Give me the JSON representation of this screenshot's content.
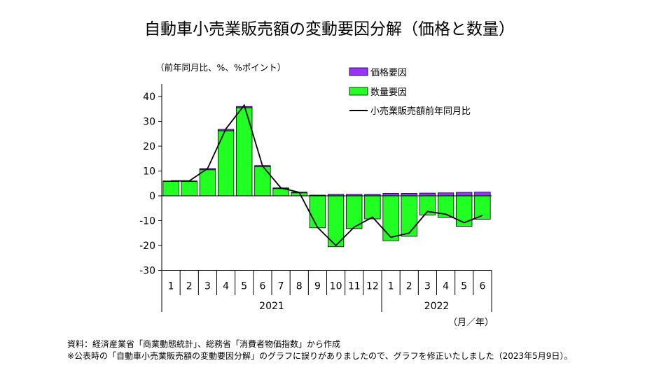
{
  "title": "自動車小売業販売額の変動要因分解（価格と数量）",
  "chart_data": {
    "type": "bar",
    "stacked": true,
    "ylabel": "（前年同月比、%、%ポイント）",
    "xunit": "（月／年）",
    "ylim": [
      -30,
      45
    ],
    "yticks": [
      40,
      30,
      20,
      10,
      0,
      -10,
      -20,
      -30
    ],
    "categories": [
      "1",
      "2",
      "3",
      "4",
      "5",
      "6",
      "7",
      "8",
      "9",
      "10",
      "11",
      "12",
      "1",
      "2",
      "3",
      "4",
      "5",
      "6"
    ],
    "year_groups": [
      {
        "label": "2021",
        "start": 0,
        "count": 12
      },
      {
        "label": "2022",
        "start": 12,
        "count": 6
      }
    ],
    "series": [
      {
        "name": "数量要因",
        "type": "bar",
        "color": "#22ff22",
        "values": [
          5.8,
          5.8,
          10.5,
          26.2,
          35.5,
          11.7,
          2.9,
          1.2,
          -12.9,
          -20.5,
          -13.2,
          -9.3,
          -18.1,
          -16.3,
          -7.7,
          -8.7,
          -12.3,
          -9.4
        ]
      },
      {
        "name": "価格要因",
        "type": "bar",
        "color": "#9933ff",
        "values": [
          0.2,
          0.2,
          0.5,
          0.6,
          0.5,
          0.5,
          0.3,
          0.3,
          0.3,
          0.6,
          0.6,
          0.6,
          1.0,
          1.0,
          1.1,
          1.2,
          1.4,
          1.5
        ]
      },
      {
        "name": "小売業販売額前年同月比",
        "type": "line",
        "color": "#000000",
        "values": [
          6.0,
          6.0,
          11.0,
          27.0,
          36.5,
          12.0,
          3.2,
          1.4,
          -12.7,
          -20.0,
          -12.6,
          -8.6,
          -16.7,
          -15.0,
          -6.3,
          -7.4,
          -10.8,
          -7.9
        ]
      }
    ],
    "legend_position": "top-right"
  },
  "notes": {
    "source": "資料：経済産業省「商業動態統計」、総務省「消費者物価指数」から作成",
    "correction": "※公表時の「自動車小売業販売額の変動要因分解」のグラフに誤りがありましたので、グラフを修正いたしました（2023年5月9日）。"
  }
}
